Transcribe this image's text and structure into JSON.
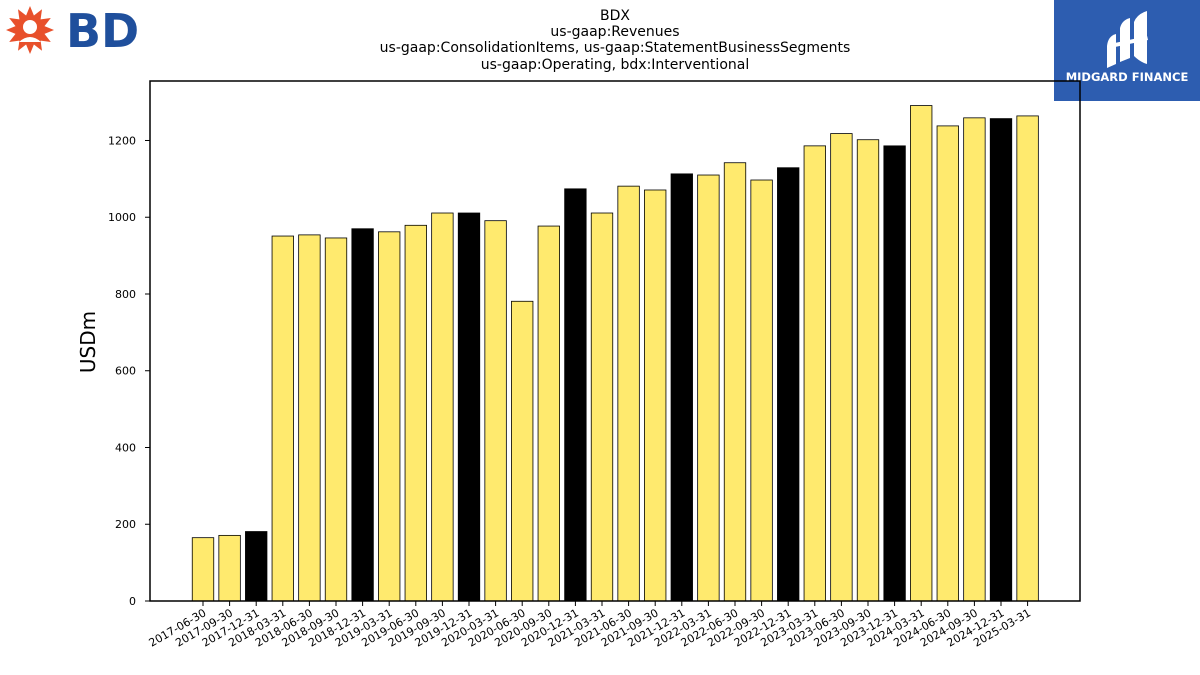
{
  "logos": {
    "left_text": "BD",
    "right_text": "MIDGARD FINANCE"
  },
  "chart_data": {
    "type": "bar",
    "title_lines": [
      "BDX",
      "us-gaap:Revenues",
      "us-gaap:ConsolidationItems, us-gaap:StatementBusinessSegments",
      "us-gaap:Operating, bdx:Interventional"
    ],
    "ylabel": "USDm",
    "xlabel": "",
    "ylim": [
      0,
      1355
    ],
    "yticks": [
      0,
      200,
      400,
      600,
      800,
      1000,
      1200
    ],
    "categories": [
      "2017-06-30",
      "2017-09-30",
      "2017-12-31",
      "2018-03-31",
      "2018-06-30",
      "2018-09-30",
      "2018-12-31",
      "2019-03-31",
      "2019-06-30",
      "2019-09-30",
      "2019-12-31",
      "2020-03-31",
      "2020-06-30",
      "2020-09-30",
      "2020-12-31",
      "2021-03-31",
      "2021-06-30",
      "2021-09-30",
      "2021-12-31",
      "2022-03-31",
      "2022-06-30",
      "2022-09-30",
      "2022-12-31",
      "2023-03-31",
      "2023-06-30",
      "2023-09-30",
      "2023-12-31",
      "2024-03-31",
      "2024-06-30",
      "2024-09-30",
      "2024-12-31",
      "2025-03-31"
    ],
    "values": [
      165,
      171,
      181,
      951,
      954,
      946,
      970,
      962,
      979,
      1011,
      1011,
      991,
      781,
      977,
      1074,
      1011,
      1081,
      1071,
      1113,
      1110,
      1142,
      1097,
      1129,
      1186,
      1218,
      1202,
      1186,
      1291,
      1238,
      1259,
      1257,
      1264
    ],
    "highlight_quarter_end": "12-31",
    "colors": {
      "bar": "#ffea6e",
      "bar_highlight": "#000000",
      "edge": "#000000",
      "axis": "#000000",
      "left_logo_burst": "#e8502b",
      "left_logo_text": "#1f4f9c",
      "right_logo_bg": "#2d5db0"
    },
    "grid": false,
    "legend": "none"
  }
}
